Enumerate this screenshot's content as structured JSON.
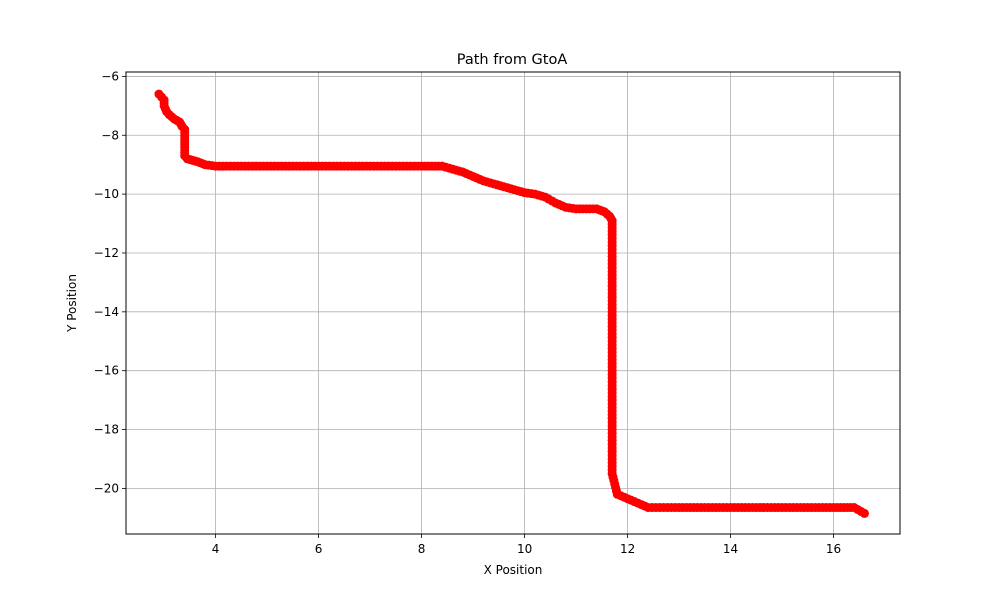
{
  "chart_data": {
    "type": "scatter",
    "title": "Path from GtoA",
    "xlabel": "X Position",
    "ylabel": "Y Position",
    "xlim": [
      2.26,
      17.29
    ],
    "ylim": [
      -21.55,
      -5.85
    ],
    "xticks": [
      4,
      6,
      8,
      10,
      12,
      14,
      16
    ],
    "yticks": [
      -6,
      -8,
      -10,
      -12,
      -14,
      -16,
      -18,
      -20
    ],
    "grid": true,
    "marker_color": "#ff0000",
    "series": [
      {
        "x": [
          2.9,
          3.0,
          3.0,
          3.05,
          3.1,
          3.2,
          3.3,
          3.35,
          3.4,
          3.4,
          3.4,
          3.4,
          3.45,
          3.55,
          3.65,
          3.8,
          4.0,
          4.5,
          5.0,
          5.5,
          6.0,
          6.5,
          7.0,
          7.5,
          8.0,
          8.4,
          8.6,
          8.8,
          9.0,
          9.2,
          9.4,
          9.6,
          9.8,
          10.0,
          10.2,
          10.4,
          10.6,
          10.8,
          11.0,
          11.2,
          11.4,
          11.55,
          11.65,
          11.7,
          11.7,
          11.7,
          11.7,
          11.7,
          11.7,
          11.7,
          11.7,
          11.7,
          11.7,
          11.8,
          12.0,
          12.2,
          12.4,
          13.0,
          13.5,
          14.0,
          14.5,
          15.0,
          15.5,
          16.0,
          16.4,
          16.6
        ],
        "y": [
          -6.6,
          -6.8,
          -7.0,
          -7.2,
          -7.3,
          -7.45,
          -7.55,
          -7.7,
          -7.8,
          -8.1,
          -8.4,
          -8.7,
          -8.8,
          -8.85,
          -8.9,
          -9.0,
          -9.05,
          -9.05,
          -9.05,
          -9.05,
          -9.05,
          -9.05,
          -9.05,
          -9.05,
          -9.05,
          -9.05,
          -9.15,
          -9.25,
          -9.4,
          -9.55,
          -9.65,
          -9.75,
          -9.85,
          -9.95,
          -10.0,
          -10.1,
          -10.3,
          -10.45,
          -10.5,
          -10.5,
          -10.5,
          -10.6,
          -10.75,
          -10.9,
          -11.5,
          -12.5,
          -13.5,
          -14.5,
          -15.5,
          -16.5,
          -17.5,
          -18.5,
          -19.5,
          -20.2,
          -20.35,
          -20.5,
          -20.65,
          -20.65,
          -20.65,
          -20.65,
          -20.65,
          -20.65,
          -20.65,
          -20.65,
          -20.65,
          -20.85
        ]
      }
    ]
  }
}
